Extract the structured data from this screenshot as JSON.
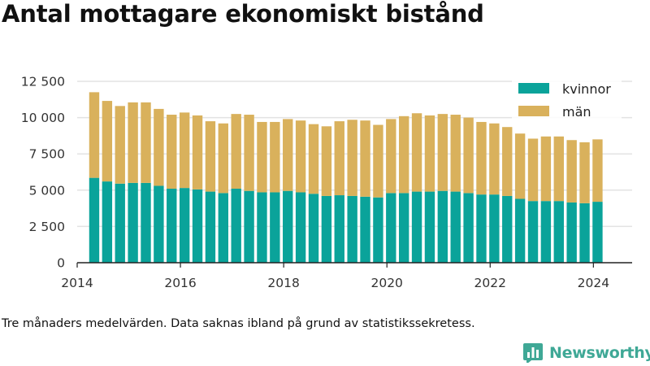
{
  "header": {
    "title": "Antal mottagare ekonomiskt bistånd"
  },
  "footer": {
    "note": "Tre månaders medelvärden. Data saknas ibland på grund av statistikssekretess.",
    "brand": "Newsworthy"
  },
  "colors": {
    "kvinnor": "#0aa39a",
    "man": "#d9b15c",
    "brand": "#3fa896"
  },
  "chart_data": {
    "type": "bar",
    "stacked": true,
    "title": "Antal mottagare ekonomiskt bistånd",
    "xlabel": "",
    "ylabel": "",
    "ylim": [
      0,
      12500
    ],
    "xlim": [
      2014.0,
      2024.75
    ],
    "grid": true,
    "legend_position": "top-right",
    "x_ticks": [
      2014,
      2016,
      2018,
      2020,
      2022,
      2024
    ],
    "x_tick_labels": [
      "2014",
      "2016",
      "2018",
      "2020",
      "2022",
      "2024"
    ],
    "y_ticks": [
      0,
      2500,
      5000,
      7500,
      10000,
      12500
    ],
    "y_tick_labels": [
      "0",
      "2 500",
      "5 000",
      "7 500",
      "10 000",
      "12 500"
    ],
    "x": [
      2014.33,
      2014.58,
      2014.83,
      2015.08,
      2015.33,
      2015.58,
      2015.83,
      2016.08,
      2016.33,
      2016.58,
      2016.83,
      2017.08,
      2017.33,
      2017.58,
      2017.83,
      2018.08,
      2018.33,
      2018.58,
      2018.83,
      2019.08,
      2019.33,
      2019.58,
      2019.83,
      2020.08,
      2020.33,
      2020.58,
      2020.83,
      2021.08,
      2021.33,
      2021.58,
      2021.83,
      2022.08,
      2022.33,
      2022.58,
      2022.83,
      2023.08,
      2023.33,
      2023.58,
      2023.83,
      2024.08
    ],
    "series": [
      {
        "name": "kvinnor",
        "values": [
          5850,
          5600,
          5450,
          5500,
          5500,
          5300,
          5100,
          5150,
          5050,
          4900,
          4800,
          5100,
          4950,
          4850,
          4850,
          4950,
          4850,
          4750,
          4600,
          4650,
          4600,
          4550,
          4500,
          4800,
          4800,
          4900,
          4900,
          4950,
          4900,
          4800,
          4700,
          4700,
          4600,
          4400,
          4250,
          4250,
          4250,
          4150,
          4100,
          4200
        ]
      },
      {
        "name": "män",
        "values": [
          5900,
          5550,
          5350,
          5550,
          5550,
          5300,
          5100,
          5200,
          5100,
          4850,
          4800,
          5150,
          5250,
          4850,
          4850,
          4950,
          4950,
          4800,
          4800,
          5100,
          5250,
          5250,
          5000,
          5100,
          5300,
          5400,
          5250,
          5300,
          5300,
          5200,
          5000,
          4900,
          4750,
          4500,
          4300,
          4450,
          4450,
          4300,
          4200,
          4300
        ]
      }
    ]
  }
}
